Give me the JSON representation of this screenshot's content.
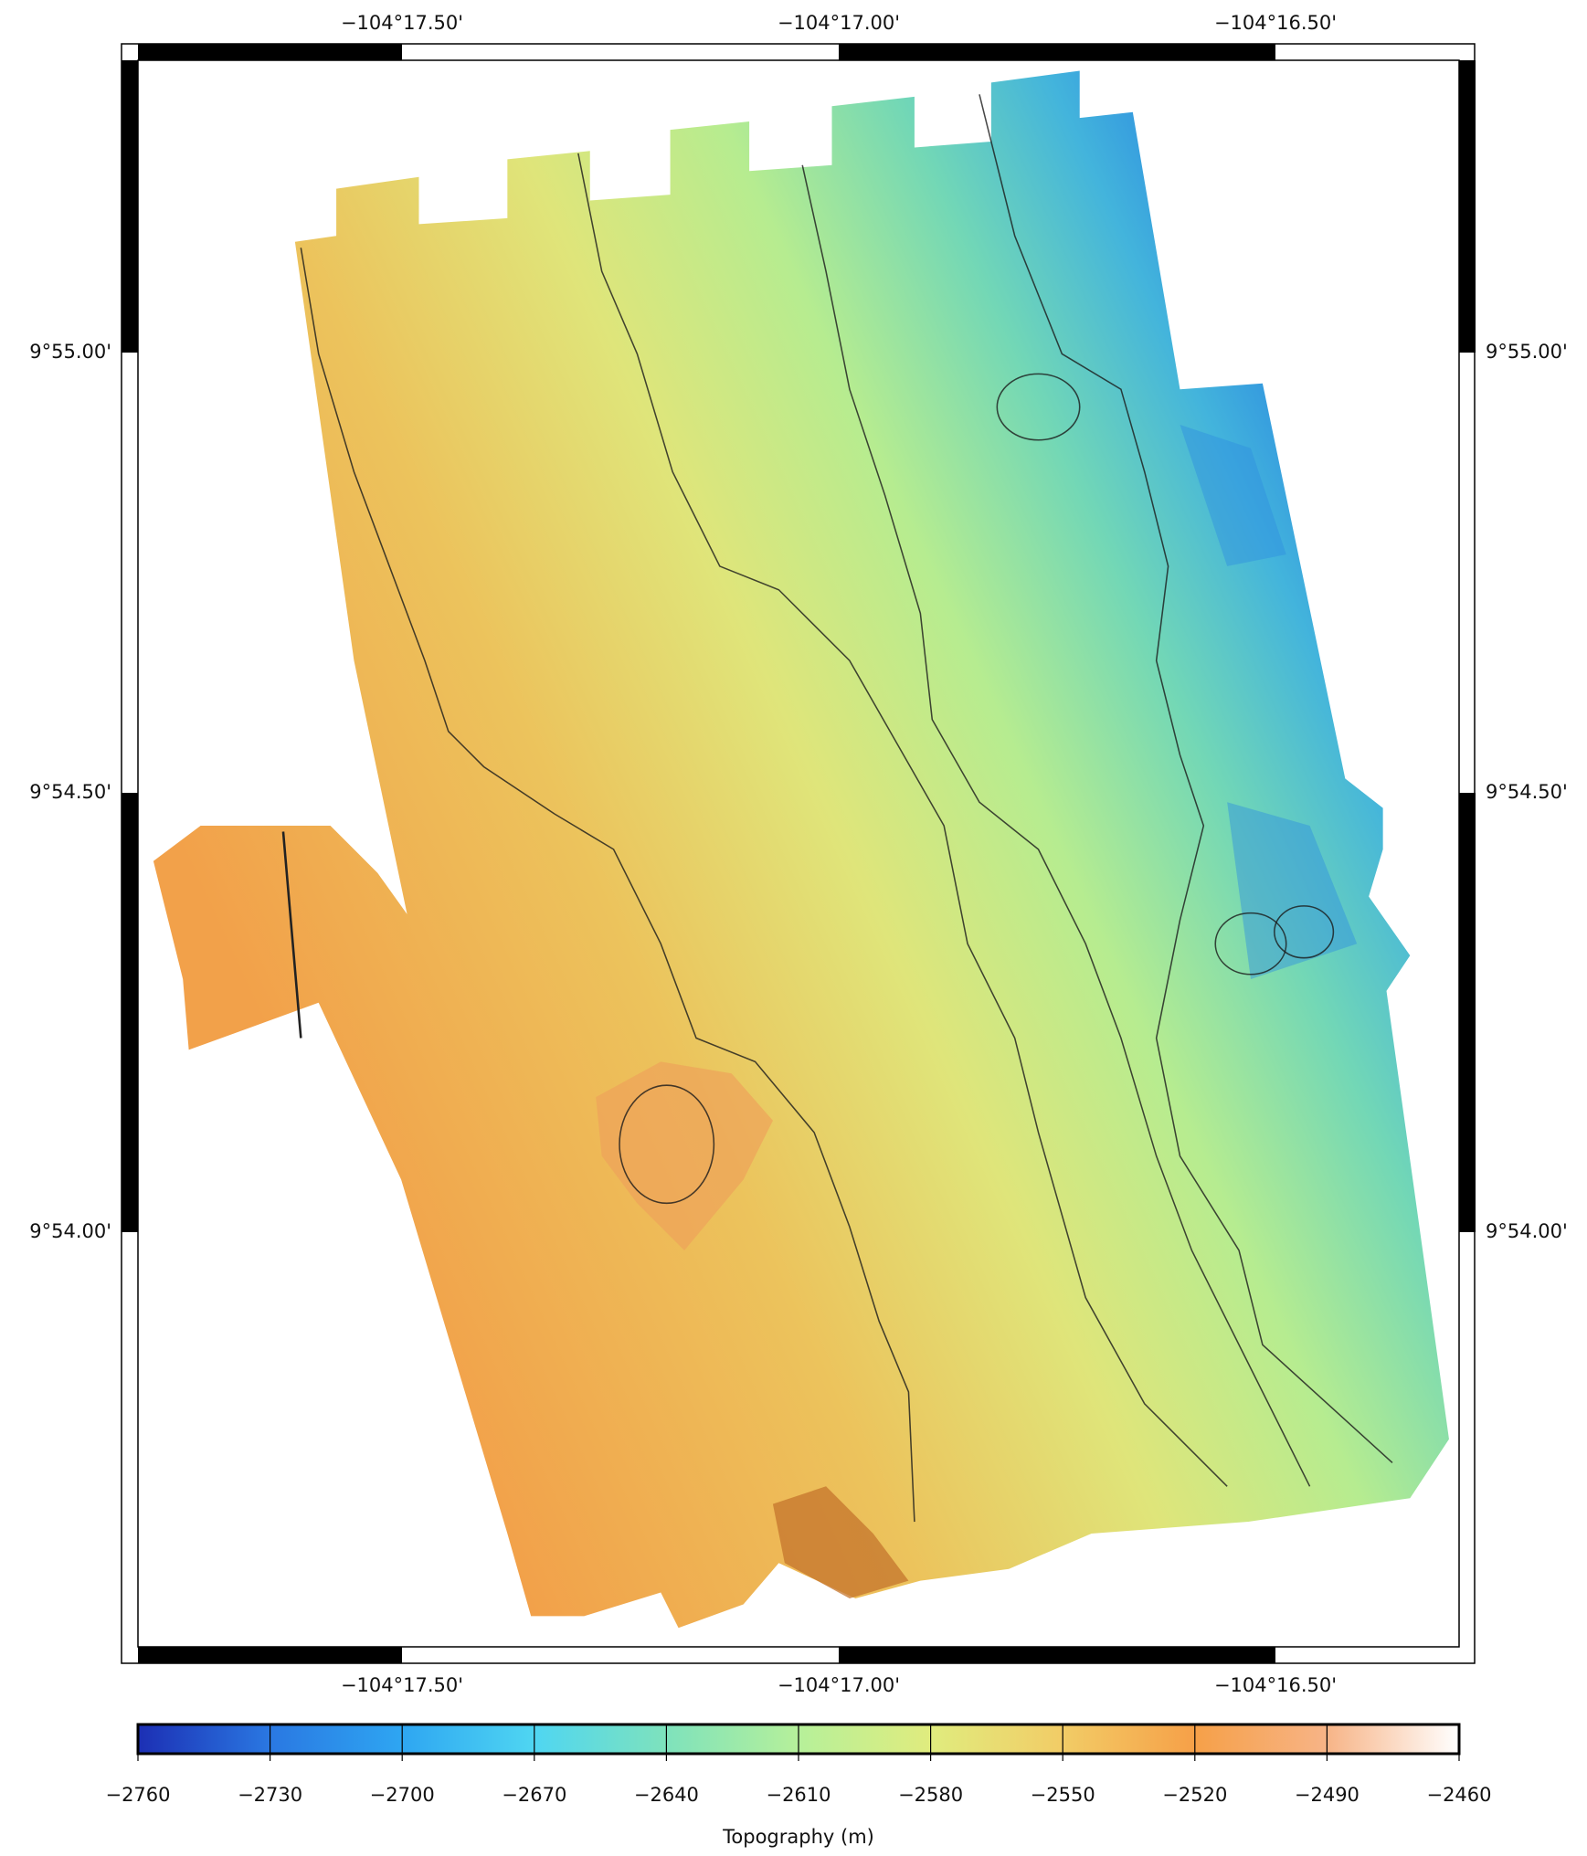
{
  "map": {
    "top_labels": [
      "−104°17.50'",
      "−104°17.00'",
      "−104°16.50'"
    ],
    "bottom_labels": [
      "−104°17.50'",
      "−104°17.00'",
      "−104°16.50'"
    ],
    "left_labels": [
      "9°55.00'",
      "9°54.50'",
      "9°54.00'"
    ],
    "right_labels": [
      "9°55.00'",
      "9°54.50'",
      "9°54.00'"
    ]
  },
  "colorbar": {
    "label": "Topography (m)",
    "range": [
      -2760,
      -2460
    ],
    "ticks": [
      {
        "value": -2760,
        "label": "−2760"
      },
      {
        "value": -2730,
        "label": "−2730"
      },
      {
        "value": -2700,
        "label": "−2700"
      },
      {
        "value": -2670,
        "label": "−2670"
      },
      {
        "value": -2640,
        "label": "−2640"
      },
      {
        "value": -2610,
        "label": "−2610"
      },
      {
        "value": -2580,
        "label": "−2580"
      },
      {
        "value": -2550,
        "label": "−2550"
      },
      {
        "value": -2520,
        "label": "−2520"
      },
      {
        "value": -2490,
        "label": "−2490"
      },
      {
        "value": -2460,
        "label": "−2460"
      }
    ],
    "colors": [
      "#1c2fb4",
      "#2a78e2",
      "#2ea6f2",
      "#4fd6f2",
      "#7ee2bc",
      "#b6f09a",
      "#e0ec7e",
      "#f2cc66",
      "#f6a048",
      "#f7b487",
      "#ffffff"
    ]
  }
}
